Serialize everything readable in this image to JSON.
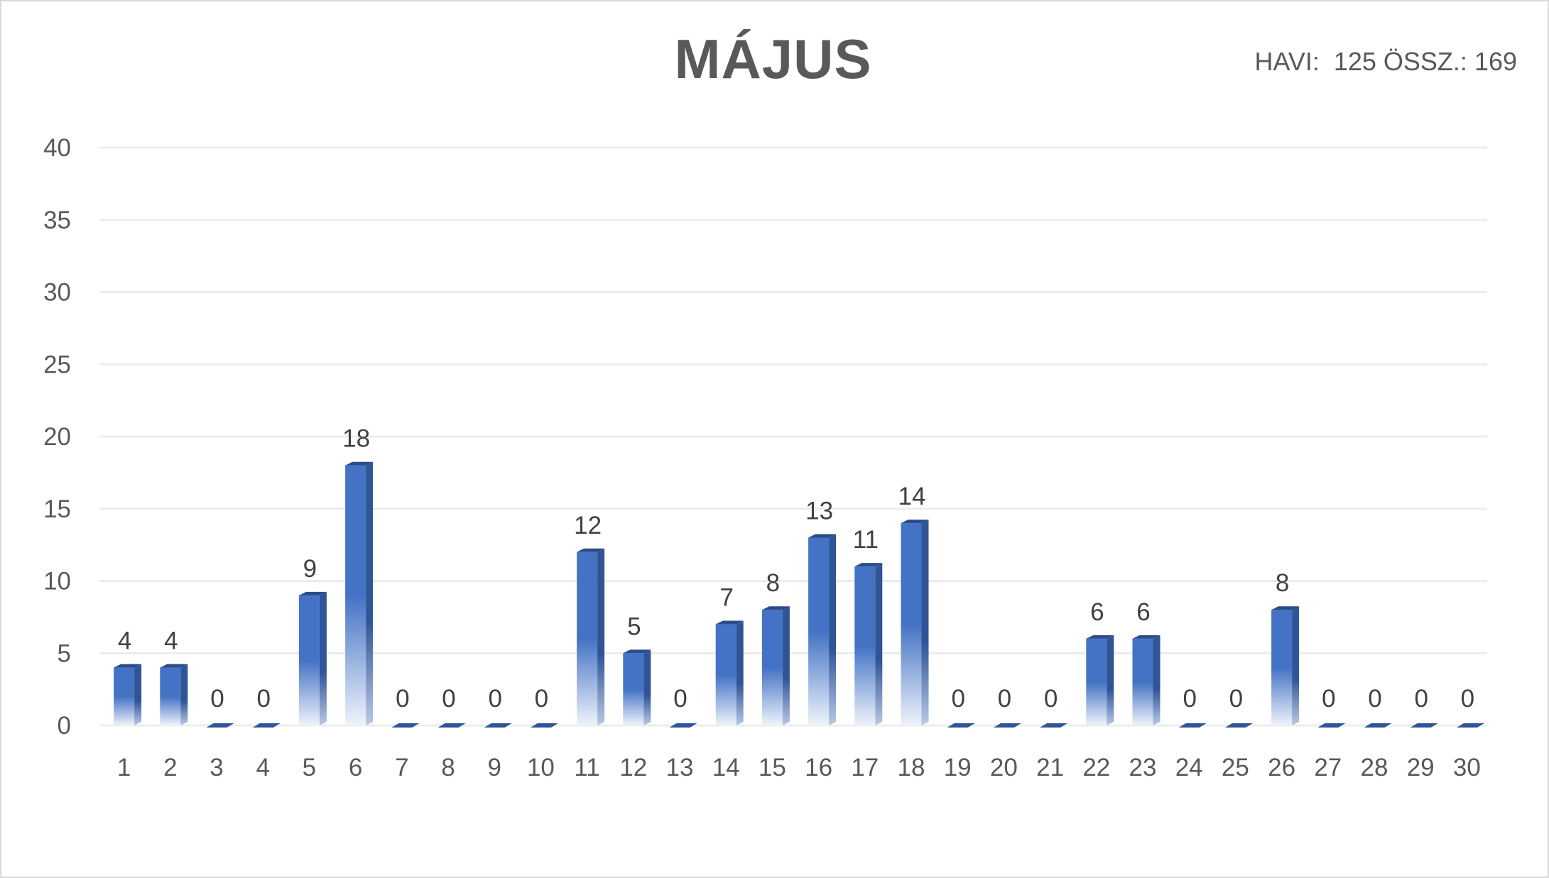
{
  "title": "MÁJUS",
  "summary": "HAVI:  125 ÖSSZ.: 169",
  "colors": {
    "bar_front": "#4472c4",
    "bar_side": "#2f5597",
    "bar_top": "#2a4c8a",
    "grid": "#ececec",
    "text": "#595959",
    "data_label": "#404040"
  },
  "chart_data": {
    "type": "bar",
    "style": "3d-column",
    "categories": [
      "1",
      "2",
      "3",
      "4",
      "5",
      "6",
      "7",
      "8",
      "9",
      "10",
      "11",
      "12",
      "13",
      "14",
      "15",
      "16",
      "17",
      "18",
      "19",
      "20",
      "21",
      "22",
      "23",
      "24",
      "25",
      "26",
      "27",
      "28",
      "29",
      "30"
    ],
    "values": [
      4,
      4,
      0,
      0,
      9,
      18,
      0,
      0,
      0,
      0,
      12,
      5,
      0,
      7,
      8,
      13,
      11,
      14,
      0,
      0,
      0,
      6,
      6,
      0,
      0,
      8,
      0,
      0,
      0,
      0
    ],
    "y_ticks": [
      "0",
      "5",
      "10",
      "15",
      "20",
      "25",
      "30",
      "35",
      "40"
    ],
    "ylim": [
      0,
      40
    ],
    "data_labels": true,
    "grid": true,
    "legend": "none"
  }
}
